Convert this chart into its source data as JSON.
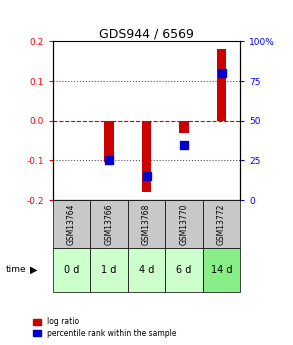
{
  "title": "GDS944 / 6569",
  "columns": [
    "GSM13764",
    "GSM13766",
    "GSM13768",
    "GSM13770",
    "GSM13772"
  ],
  "time_labels": [
    "0 d",
    "1 d",
    "4 d",
    "6 d",
    "14 d"
  ],
  "log_ratios": [
    0.0,
    -0.105,
    -0.18,
    -0.03,
    0.18
  ],
  "percentile_ranks": [
    null,
    25,
    15,
    35,
    80
  ],
  "ylim_left": [
    -0.2,
    0.2
  ],
  "ylim_right": [
    0,
    100
  ],
  "yticks_left": [
    -0.2,
    -0.1,
    0.0,
    0.1,
    0.2
  ],
  "yticks_right": [
    0,
    25,
    50,
    75,
    100
  ],
  "ytick_labels_right": [
    "0",
    "25",
    "50",
    "75",
    "100%"
  ],
  "bar_color": "#cc0000",
  "dot_color": "#0000cc",
  "zero_line_color": "#cc0000",
  "grid_color": "#555555",
  "gsm_bg_color": "#c8c8c8",
  "time_bg_colors": [
    "#ccffcc",
    "#ccffcc",
    "#ccffcc",
    "#ccffcc",
    "#88ee88"
  ],
  "legend_bar_label": "log ratio",
  "legend_dot_label": "percentile rank within the sample",
  "bar_width": 0.25,
  "dot_size": 30,
  "fig_width": 2.93,
  "fig_height": 3.45
}
